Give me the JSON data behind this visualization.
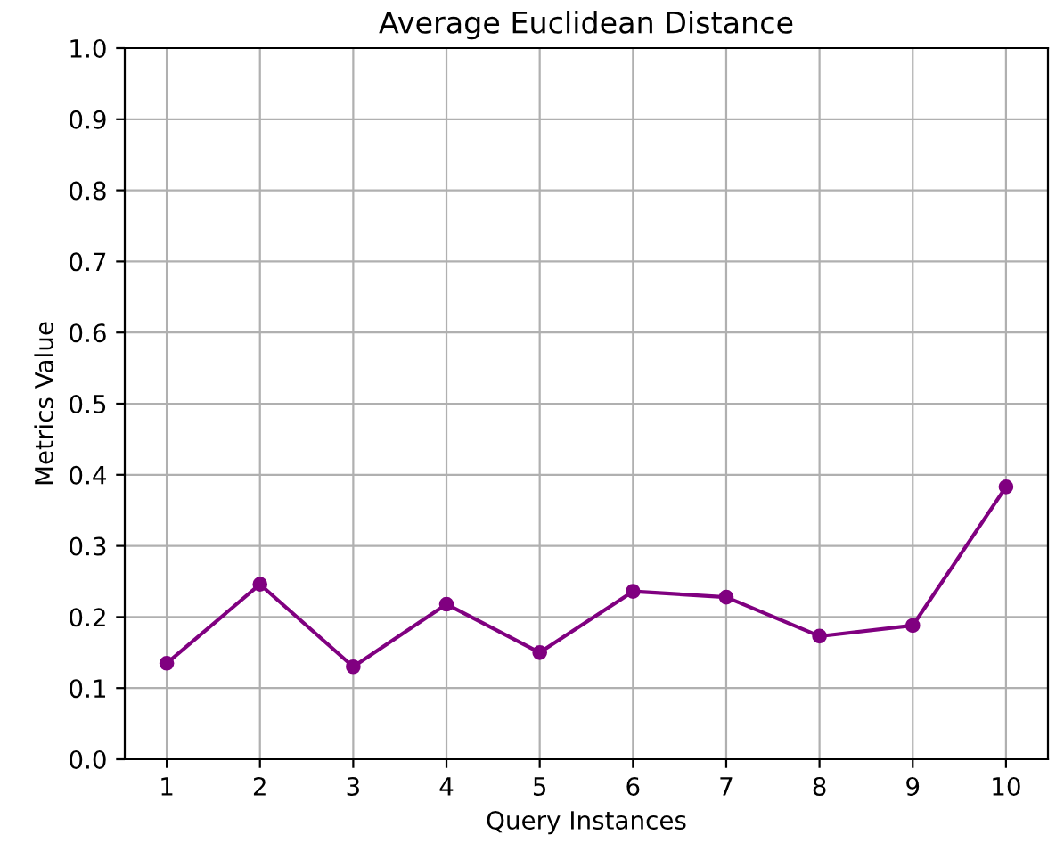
{
  "chart_data": {
    "type": "line",
    "title": "Average Euclidean Distance",
    "xlabel": "Query Instances",
    "ylabel": "Metrics Value",
    "x": [
      1,
      2,
      3,
      4,
      5,
      6,
      7,
      8,
      9,
      10
    ],
    "series": [
      {
        "color": "#800080",
        "values": [
          0.135,
          0.246,
          0.13,
          0.218,
          0.15,
          0.236,
          0.228,
          0.173,
          0.188,
          0.383
        ]
      }
    ],
    "xlim": [
      0.55,
      10.45
    ],
    "xticks": [
      1,
      2,
      3,
      4,
      5,
      6,
      7,
      8,
      9,
      10
    ],
    "ylim": [
      0.0,
      1.0
    ],
    "yticks": [
      {
        "value": 0,
        "label": "0.0"
      },
      0.1,
      0.2,
      0.3,
      0.4,
      0.5,
      0.6,
      0.7,
      0.8,
      0.9,
      {
        "value": 1,
        "label": "1.0"
      }
    ],
    "grid": true,
    "marker": "circle",
    "line_style": "solid"
  }
}
